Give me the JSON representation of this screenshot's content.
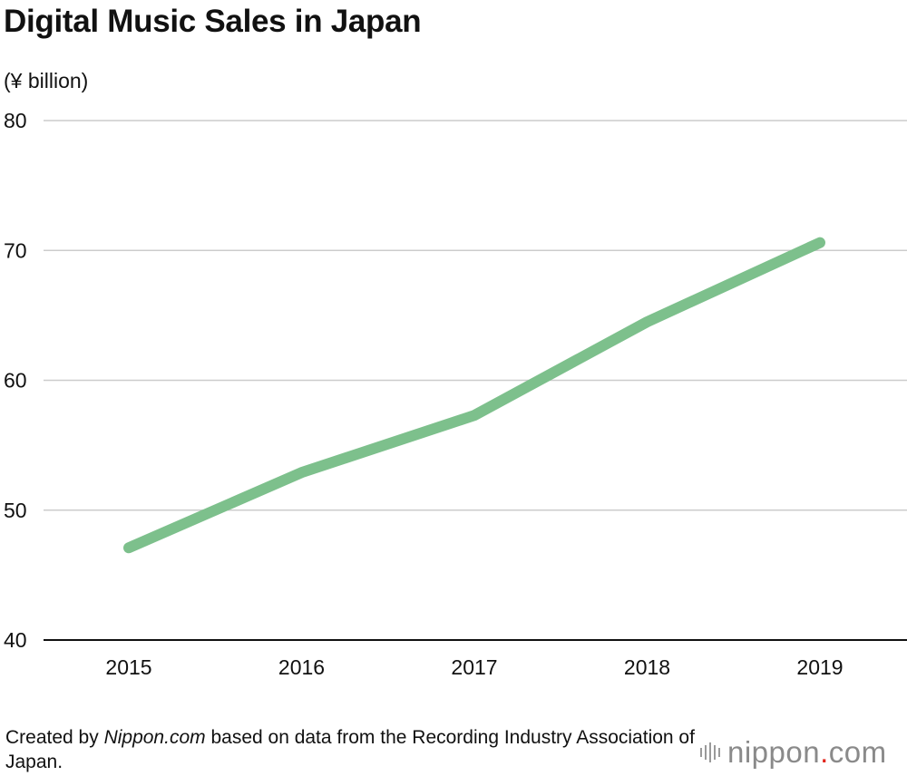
{
  "chart_data": {
    "type": "line",
    "title": "Digital Music Sales in Japan",
    "ylabel": "(¥ billion)",
    "xlabel": "",
    "categories": [
      "2015",
      "2016",
      "2017",
      "2018",
      "2019"
    ],
    "series": [
      {
        "name": "Digital music sales",
        "values": [
          47.1,
          52.9,
          57.3,
          64.5,
          70.6
        ]
      }
    ],
    "ylim": [
      40,
      80
    ],
    "yticks": [
      40,
      50,
      60,
      70,
      80
    ],
    "grid": true,
    "line_color": "#7dc08c",
    "gridline_color": "#cccccc"
  },
  "footer": {
    "prefix": "Created by ",
    "source_name": "Nippon.com",
    "suffix": " based on data from the Recording Industry Association of Japan."
  },
  "logo": {
    "word": "nippon",
    "dot": ".",
    "tld": "com",
    "accent_color": "#e2231a"
  }
}
